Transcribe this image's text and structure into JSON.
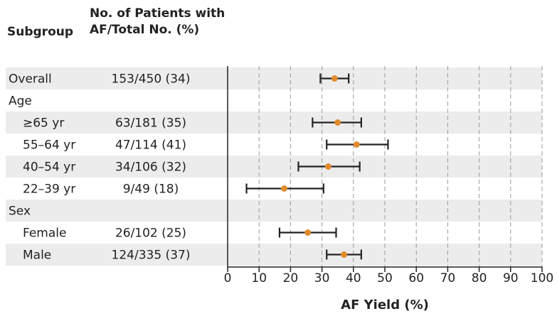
{
  "headers": {
    "subgroup": "Subgroup",
    "count_line1": "No. of Patients with",
    "count_line2": "AF/Total No. (%)"
  },
  "chart_data": {
    "type": "forest",
    "xlabel": "AF Yield (%)",
    "xlim": [
      0,
      100
    ],
    "xticks": [
      "0",
      "10",
      "20",
      "30",
      "40",
      "50",
      "60",
      "70",
      "80",
      "90",
      "100"
    ],
    "xtick_values": [
      0,
      10,
      20,
      30,
      40,
      50,
      60,
      70,
      80,
      90,
      100
    ],
    "grid": "vertical dashed",
    "point_color": "#e08a2c",
    "shade_color": "#ececec",
    "rows": [
      {
        "label": "Overall",
        "indent": false,
        "count": "153/450 (34)",
        "estimate": 34,
        "ci": [
          29.5,
          38.5
        ],
        "shaded": true
      },
      {
        "label": "Age",
        "indent": false,
        "count": "",
        "estimate": null,
        "ci": null,
        "shaded": false
      },
      {
        "label": "≥65 yr",
        "indent": true,
        "count": "63/181 (35)",
        "estimate": 35,
        "ci": [
          27,
          42.5
        ],
        "shaded": true
      },
      {
        "label": "55–64 yr",
        "indent": true,
        "count": "47/114 (41)",
        "estimate": 41,
        "ci": [
          31.5,
          51
        ],
        "shaded": false
      },
      {
        "label": "40–54 yr",
        "indent": true,
        "count": "34/106 (32)",
        "estimate": 32,
        "ci": [
          22.5,
          42
        ],
        "shaded": true
      },
      {
        "label": "22–39 yr",
        "indent": true,
        "count": "9/49 (18)",
        "estimate": 18,
        "ci": [
          6,
          30.5
        ],
        "shaded": false
      },
      {
        "label": "Sex",
        "indent": false,
        "count": "",
        "estimate": null,
        "ci": null,
        "shaded": true
      },
      {
        "label": "Female",
        "indent": true,
        "count": "26/102 (25)",
        "estimate": 25.5,
        "ci": [
          16.5,
          34.5
        ],
        "shaded": false
      },
      {
        "label": "Male",
        "indent": true,
        "count": "124/335 (37)",
        "estimate": 37,
        "ci": [
          31.5,
          42.5
        ],
        "shaded": true
      }
    ]
  }
}
